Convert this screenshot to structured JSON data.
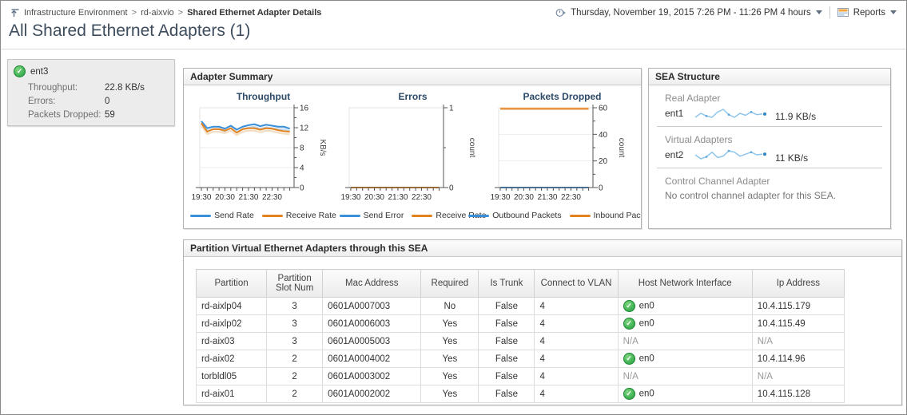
{
  "breadcrumb": {
    "items": [
      {
        "label": "Infrastructure Environment"
      },
      {
        "label": "rd-aixvio"
      },
      {
        "label": "Shared Ethernet Adapter Details"
      }
    ]
  },
  "topbar": {
    "time_range": "Thursday, November 19, 2015 7:26 PM - 11:26 PM 4 hours",
    "reports_label": "Reports"
  },
  "page_title": "All Shared Ethernet Adapters (1)",
  "ent_card": {
    "name": "ent3",
    "status_icon": "green-check",
    "stats": [
      {
        "label": "Throughput:",
        "value": "22.8 KB/s"
      },
      {
        "label": "Errors:",
        "value": "0"
      },
      {
        "label": "Packets Dropped:",
        "value": "59"
      }
    ]
  },
  "adapter_summary": {
    "title": "Adapter Summary",
    "chart_data": [
      {
        "type": "line",
        "title": "Throughput",
        "ylabel": "KB/s",
        "ylim": [
          0,
          16
        ],
        "yticks": [
          {
            "v": 0,
            "label": "0"
          },
          {
            "v": 2
          },
          {
            "v": 4,
            "label": "4"
          },
          {
            "v": 6
          },
          {
            "v": 8,
            "label": "8"
          },
          {
            "v": 10
          },
          {
            "v": 12,
            "label": "12"
          },
          {
            "v": 14
          },
          {
            "v": 16,
            "label": "16"
          }
        ],
        "x_range": [
          0,
          240
        ],
        "x_minutes": [
          4,
          19,
          34,
          49,
          64,
          79,
          94,
          109,
          124,
          139,
          154,
          169,
          184,
          199,
          214,
          229
        ],
        "x_major": [
          {
            "m": 4,
            "label": "19:30"
          },
          {
            "m": 64,
            "label": "20:30"
          },
          {
            "m": 124,
            "label": "21:30"
          },
          {
            "m": 184,
            "label": "22:30"
          }
        ],
        "series": [
          {
            "name": "Send Rate",
            "color": "#3a8fd9",
            "halo": "#c5ddf1",
            "halo_dv": -0.5,
            "values": [
              13.3,
              11.9,
              12.2,
              12.2,
              11.8,
              12.4,
              11.6,
              12.2,
              12.5,
              12.7,
              12.3,
              12.6,
              12.4,
              12.2,
              12.2,
              11.8
            ]
          },
          {
            "name": "Receive Rate",
            "color": "#e2821e",
            "halo": "#f2dec5",
            "halo_dv": -0.5,
            "values": [
              12.9,
              11.2,
              11.7,
              11.7,
              11.4,
              11.9,
              11.0,
              11.7,
              11.9,
              11.9,
              11.6,
              11.9,
              11.8,
              11.5,
              11.3,
              11.2
            ]
          }
        ]
      },
      {
        "type": "line",
        "title": "Errors",
        "ylabel": "count",
        "ylim": [
          0,
          1
        ],
        "yticks": [
          {
            "v": 0,
            "label": "0"
          },
          {
            "v": 0.5
          },
          {
            "v": 1,
            "label": "1"
          }
        ],
        "x_range": [
          0,
          240
        ],
        "x_minutes": [
          4,
          19,
          34,
          49,
          64,
          79,
          94,
          109,
          124,
          139,
          154,
          169,
          184,
          199,
          214,
          229
        ],
        "x_major": [
          {
            "m": 4,
            "label": "19:30"
          },
          {
            "m": 64,
            "label": "20:30"
          },
          {
            "m": 124,
            "label": "21:30"
          },
          {
            "m": 184,
            "label": "22:30"
          }
        ],
        "series": [
          {
            "name": "Send Error",
            "color": "#3a8fd9",
            "values": [
              0,
              0,
              0,
              0,
              0,
              0,
              0,
              0,
              0,
              0,
              0,
              0,
              0,
              0,
              0,
              0
            ]
          },
          {
            "name": "Receive Rate",
            "color": "#e2821e",
            "values": [
              0,
              0,
              0,
              0,
              0,
              0,
              0,
              0,
              0,
              0,
              0,
              0,
              0,
              0,
              0,
              0
            ]
          }
        ]
      },
      {
        "type": "line",
        "title": "Packets Dropped",
        "ylabel": "count",
        "ylim": [
          0,
          60
        ],
        "yticks": [
          {
            "v": 0,
            "label": "0"
          },
          {
            "v": 10
          },
          {
            "v": 20,
            "label": "20"
          },
          {
            "v": 30
          },
          {
            "v": 40,
            "label": "40"
          },
          {
            "v": 50
          },
          {
            "v": 60,
            "label": "60"
          }
        ],
        "x_range": [
          0,
          240
        ],
        "x_minutes": [
          4,
          19,
          34,
          49,
          64,
          79,
          94,
          109,
          124,
          139,
          154,
          169,
          184,
          199,
          214,
          229
        ],
        "x_major": [
          {
            "m": 4,
            "label": "19:30"
          },
          {
            "m": 64,
            "label": "20:30"
          },
          {
            "m": 124,
            "label": "21:30"
          },
          {
            "m": 184,
            "label": "22:30"
          }
        ],
        "series": [
          {
            "name": "Outbound Packets",
            "color": "#3a8fd9",
            "values": [
              0,
              0,
              0,
              0,
              0,
              0,
              0,
              0,
              0,
              0,
              0,
              0,
              0,
              0,
              0,
              0
            ]
          },
          {
            "name": "Inbound Packets",
            "color": "#e2821e",
            "halo": "#f8e3c4",
            "halo_dv": 0.7,
            "values": [
              59.2,
              59.2,
              59.2,
              59.2,
              59.2,
              59.2,
              59.2,
              59.2,
              59.2,
              59.2,
              59.2,
              59.2,
              59.2,
              59.2,
              59.2,
              59.2
            ]
          }
        ]
      }
    ]
  },
  "sea_structure": {
    "title": "SEA Structure",
    "sections": [
      {
        "label": "Real Adapter",
        "name": "ent1",
        "value": "11.9 KB/s",
        "spark": [
          8,
          8.6,
          8.2,
          8,
          8.8,
          9.2,
          8.4,
          8,
          8.6,
          8.3,
          8.8,
          8.4,
          8.5
        ]
      },
      {
        "label": "Virtual Adapters",
        "name": "ent2",
        "value": "11 KB/s",
        "spark": [
          8.6,
          8,
          8.3,
          9,
          8.2,
          8.4,
          9.2,
          9,
          8.4,
          8.7,
          9,
          8.6,
          8.7
        ]
      },
      {
        "label": "Control Channel Adapter",
        "message": "No control channel adapter for this SEA."
      }
    ]
  },
  "partition_table": {
    "title": "Partition Virtual Ethernet Adapters through this SEA",
    "columns": [
      "Partition",
      "Partition Slot Num",
      "Mac Address",
      "Required",
      "Is Trunk",
      "Connect to VLAN",
      "Host Network Interface",
      "Ip Address"
    ],
    "rows": [
      [
        "rd-aixlp04",
        "3",
        "0601A0007003",
        "No",
        "False",
        "4",
        {
          "icon": "green-check",
          "text": "en0"
        },
        "10.4.115.179"
      ],
      [
        "rd-aixlp02",
        "3",
        "0601A0006003",
        "Yes",
        "False",
        "4",
        {
          "icon": "green-check",
          "text": "en0"
        },
        "10.4.115.49"
      ],
      [
        "rd-aix03",
        "3",
        "0601A0005003",
        "Yes",
        "False",
        "4",
        {
          "text": "N/A"
        },
        "N/A"
      ],
      [
        "rd-aix02",
        "2",
        "0601A0004002",
        "Yes",
        "False",
        "4",
        {
          "icon": "green-check",
          "text": "en0"
        },
        "10.4.114.96"
      ],
      [
        "torbldl05",
        "2",
        "0601A0003002",
        "Yes",
        "False",
        "4",
        {
          "text": "N/A"
        },
        "N/A"
      ],
      [
        "rd-aix01",
        "2",
        "0601A0002002",
        "Yes",
        "False",
        "4",
        {
          "icon": "green-check",
          "text": "en0"
        },
        "10.4.115.128"
      ]
    ]
  },
  "colors": {
    "send_series": "#3a8fd9",
    "receive_series": "#e2821e",
    "status_ok": "#1f9e3e",
    "title_text": "#3d4c5c"
  }
}
